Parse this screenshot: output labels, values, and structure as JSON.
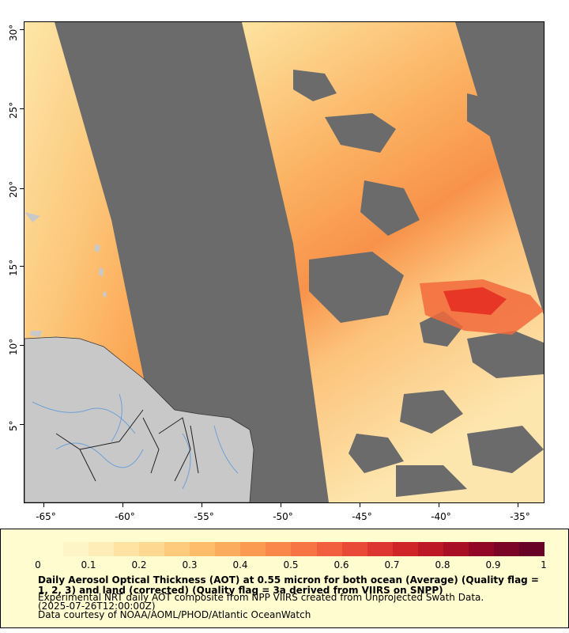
{
  "map": {
    "y_axis_labels": [
      "30°",
      "25°",
      "20°",
      "15°",
      "10°",
      "5°"
    ],
    "x_axis_labels": [
      "-65°",
      "-60°",
      "-55°",
      "-50°",
      "-45°",
      "-40°",
      "-35°"
    ],
    "colors": {
      "no_data": "#6b6b6b",
      "land": "#c8c8c8",
      "rivers": "#6fa0d8",
      "borders": "#222222",
      "aot_low": "#fde9a8",
      "aot_mid": "#fb9e4a",
      "aot_high": "#e4261e"
    }
  },
  "legend": {
    "tick_labels": [
      "0",
      "0.1",
      "0.2",
      "0.3",
      "0.4",
      "0.5",
      "0.6",
      "0.7",
      "0.8",
      "0.9",
      "1"
    ],
    "title": "Daily Aerosol Optical Thickness (AOT) at 0.55 micron for both ocean (Average) (Quality flag = 1, 2, 3) and land (corrected) (Quality flag = 3a derived from VIIRS on SNPP)",
    "line1": "Experimental NRT daily AOT composite from NPP VIIRS created from Unprojected Swath Data.",
    "line2": "(2025-07-26T12:00:00Z)",
    "line3": "Data courtesy of NOAA/AOML/PHOD/Atlantic OceanWatch",
    "colorscale": [
      "#fffccf",
      "#fef5c6",
      "#feedb6",
      "#fee3a3",
      "#fdd890",
      "#fdcb7b",
      "#fdbd6a",
      "#fcac5d",
      "#fb9b52",
      "#fa884a",
      "#f77445",
      "#f25f3f",
      "#e94a37",
      "#dd3630",
      "#cf2528",
      "#bd1825",
      "#a80e24",
      "#910725",
      "#7a0526",
      "#680327"
    ]
  }
}
